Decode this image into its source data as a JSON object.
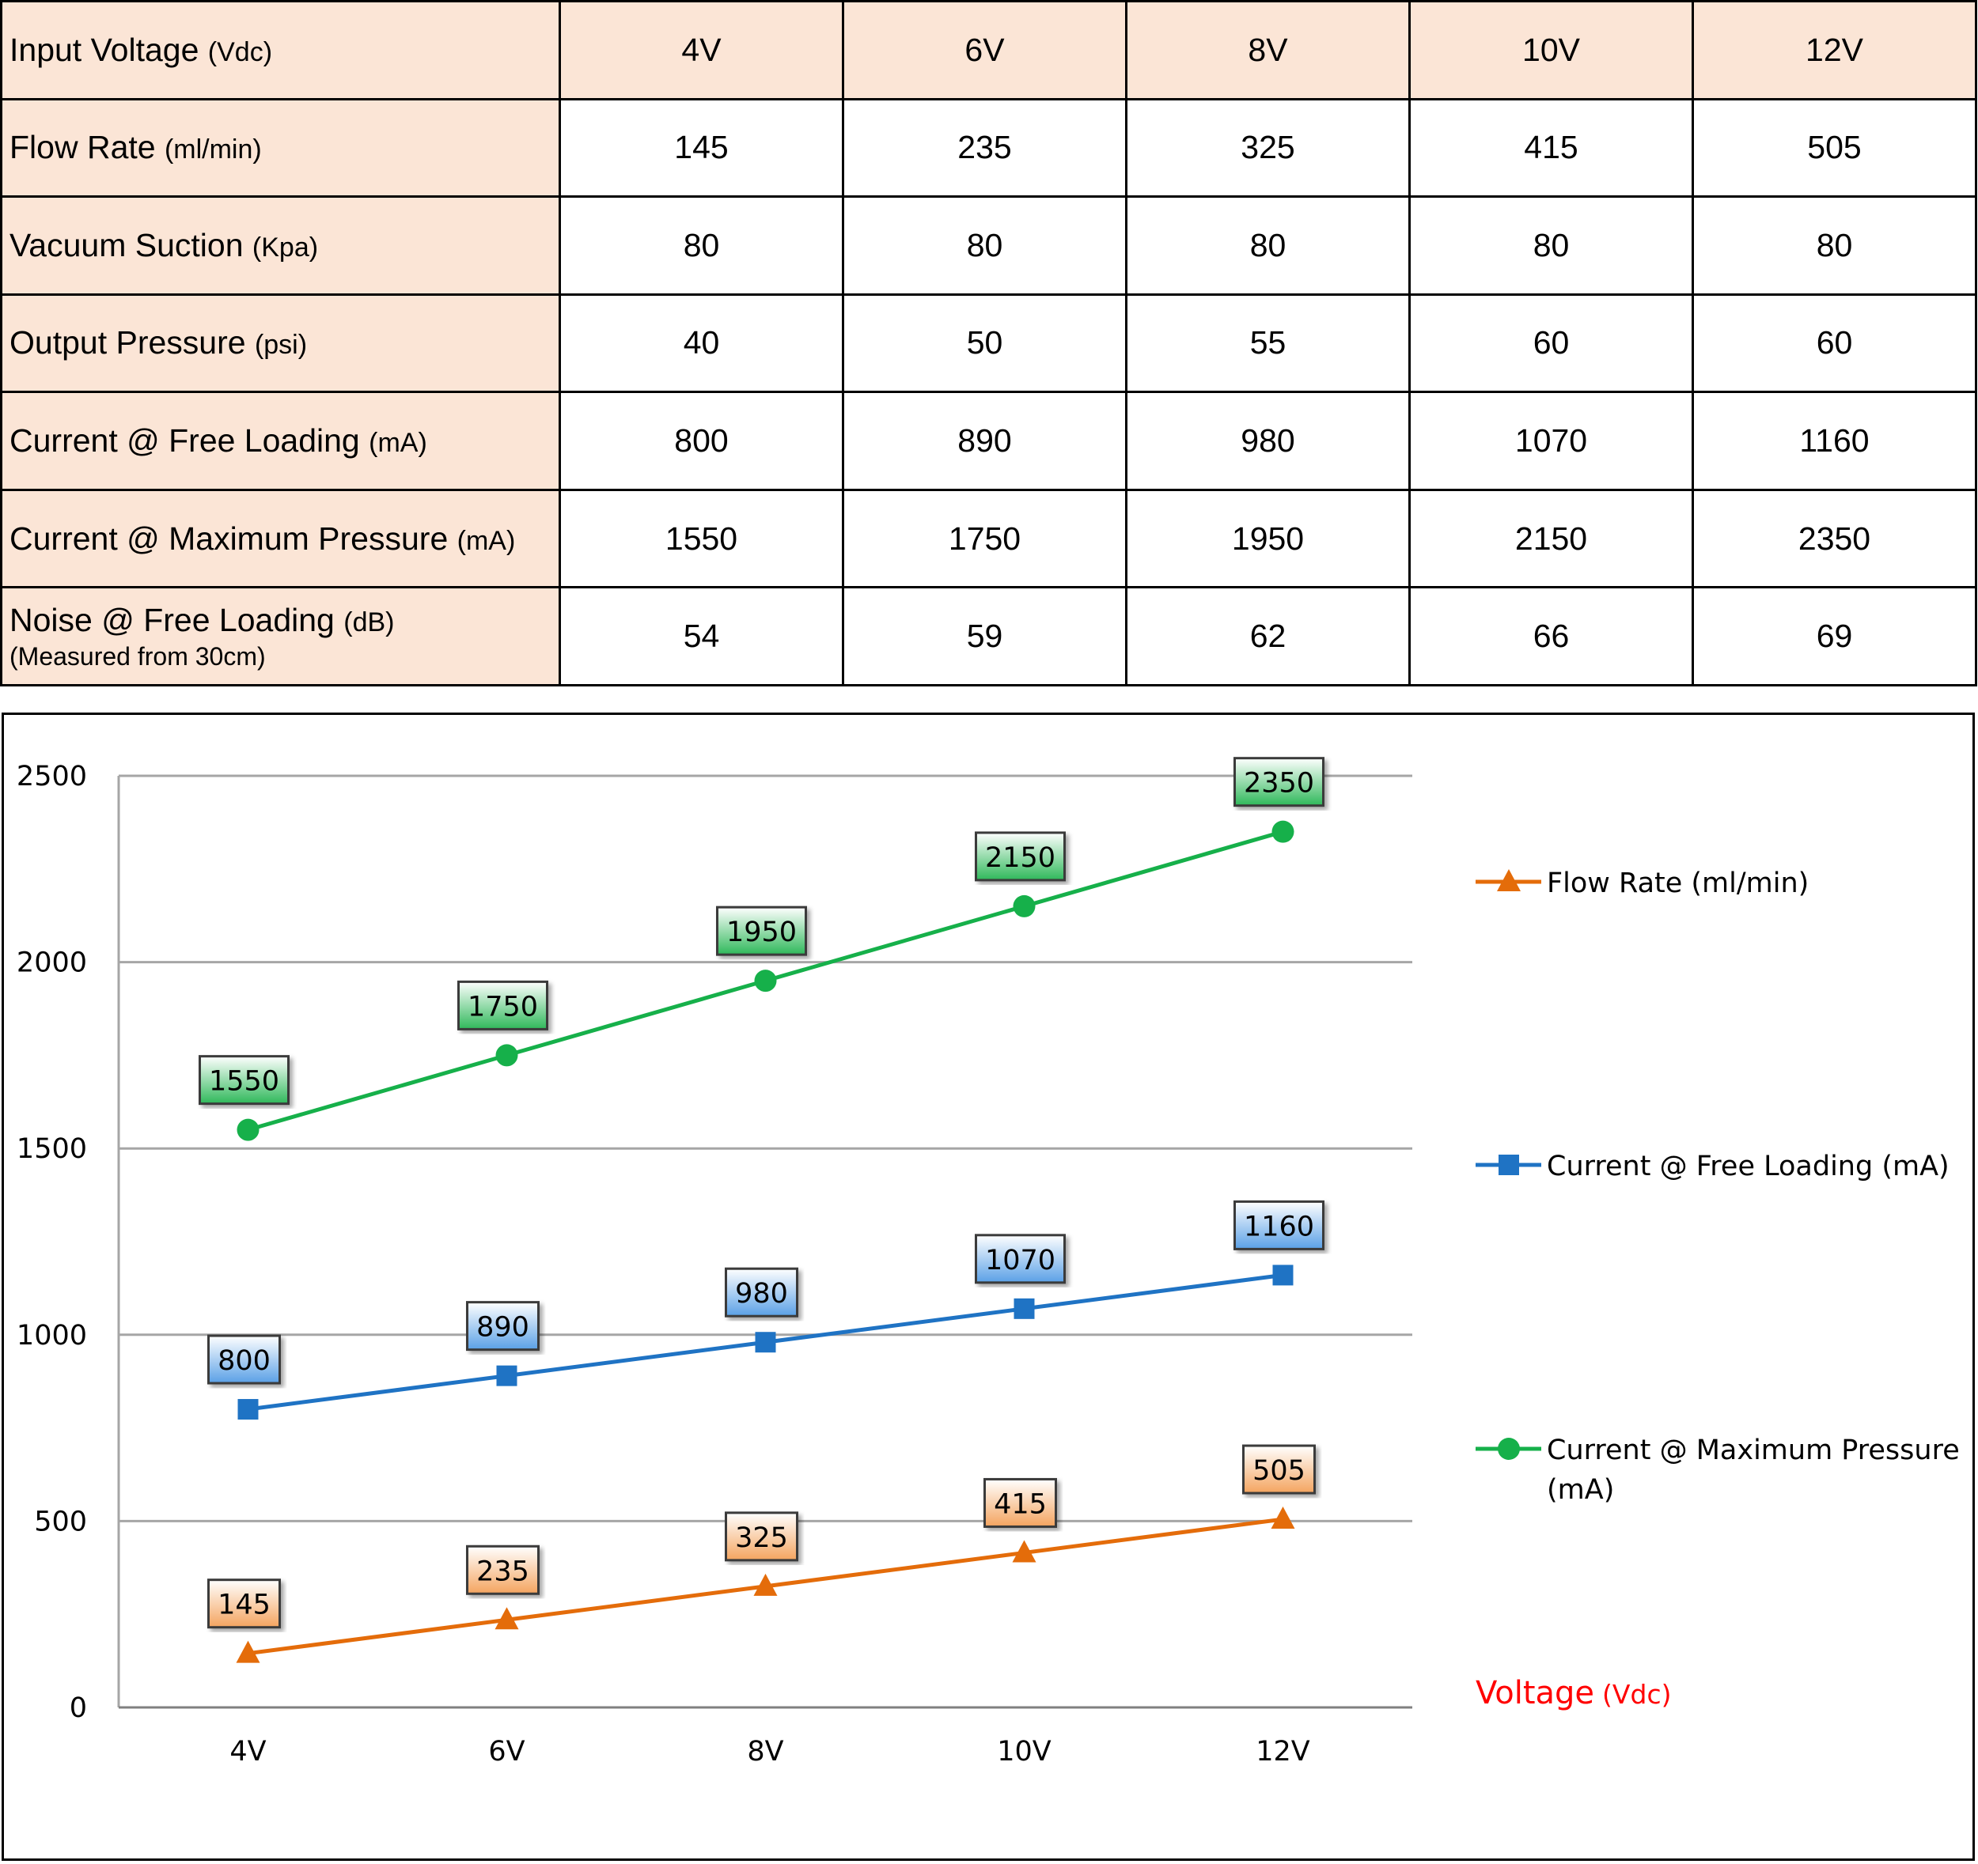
{
  "table": {
    "columns": [
      "4V",
      "6V",
      "8V",
      "10V",
      "12V"
    ],
    "header": {
      "label": "Input Voltage",
      "unit": "(Vdc)"
    },
    "rows": [
      {
        "label": "Flow Rate",
        "unit": "(ml/min)",
        "note": "",
        "values": [
          "145",
          "235",
          "325",
          "415",
          "505"
        ]
      },
      {
        "label": "Vacuum Suction",
        "unit": "(Kpa)",
        "note": "",
        "values": [
          "80",
          "80",
          "80",
          "80",
          "80"
        ]
      },
      {
        "label": "Output Pressure",
        "unit": "(psi)",
        "note": "",
        "values": [
          "40",
          "50",
          "55",
          "60",
          "60"
        ]
      },
      {
        "label": "Current @ Free Loading",
        "unit": "(mA)",
        "note": "",
        "values": [
          "800",
          "890",
          "980",
          "1070",
          "1160"
        ]
      },
      {
        "label": "Current @ Maximum Pressure",
        "unit": "(mA)",
        "note": "",
        "values": [
          "1550",
          "1750",
          "1950",
          "2150",
          "2350"
        ]
      },
      {
        "label": "Noise @ Free Loading",
        "unit": "(dB)",
        "note": "(Measured from 30cm)",
        "values": [
          "54",
          "59",
          "62",
          "66",
          "69"
        ]
      }
    ]
  },
  "chart_data": {
    "type": "line",
    "categories": [
      "4V",
      "6V",
      "8V",
      "10V",
      "12V"
    ],
    "xlabel": "Voltage",
    "xlabel_unit": "(Vdc)",
    "ylabel": "",
    "ylim": [
      0,
      2500
    ],
    "yticks": [
      0,
      500,
      1000,
      1500,
      2000,
      2500
    ],
    "grid": true,
    "legend_position": "right",
    "series": [
      {
        "name": "Flow Rate (ml/min)",
        "marker": "triangle",
        "color": "#e46c0a",
        "label_fill_top": "#ffffff",
        "label_fill_bottom": "#f4a45f",
        "values": [
          145,
          235,
          325,
          415,
          505
        ]
      },
      {
        "name": "Current @ Free Loading (mA)",
        "marker": "square",
        "color": "#1f73c4",
        "label_fill_top": "#ffffff",
        "label_fill_bottom": "#5aa0e6",
        "values": [
          800,
          890,
          980,
          1070,
          1160
        ]
      },
      {
        "name": "Current @ Maximum Pressure (mA)",
        "marker": "circle",
        "color": "#16b04a",
        "label_fill_top": "#ffffff",
        "label_fill_bottom": "#2fb85a",
        "values": [
          1550,
          1750,
          1950,
          2150,
          2350
        ]
      }
    ]
  }
}
